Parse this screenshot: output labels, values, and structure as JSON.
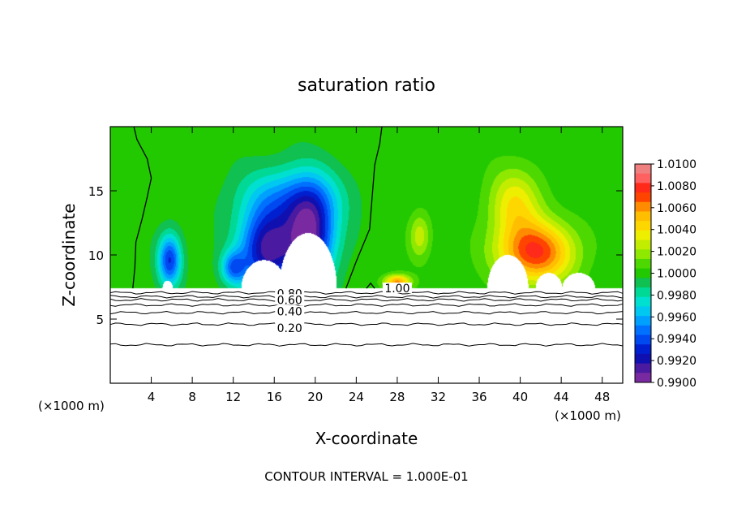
{
  "chart_data": {
    "type": "contour",
    "title": "saturation ratio",
    "xlabel": "X-coordinate",
    "ylabel": "Z-coordinate",
    "x_unit_left": "(×1000 m)",
    "x_unit_right": "(×1000 m)",
    "footer": "CONTOUR INTERVAL = 1.000E-01",
    "xlim": [
      0,
      50
    ],
    "ylim": [
      0,
      20
    ],
    "x_ticks": [
      4,
      8,
      12,
      16,
      20,
      24,
      28,
      32,
      36,
      40,
      44,
      48
    ],
    "y_ticks": [
      5,
      10,
      15
    ],
    "colorbar": {
      "ticks": [
        "1.0100",
        "1.0080",
        "1.0060",
        "1.0040",
        "1.0020",
        "1.0000",
        "0.9980",
        "0.9960",
        "0.9940",
        "0.9920",
        "0.9900"
      ],
      "colors": [
        "#f08080",
        "#ff6060",
        "#ff2a1a",
        "#ff4400",
        "#ff8c00",
        "#ffbf00",
        "#ffd700",
        "#eeee00",
        "#c2ec00",
        "#8fe800",
        "#4cd800",
        "#22c800",
        "#10c050",
        "#00d896",
        "#00e0d0",
        "#00c8f0",
        "#00a0ff",
        "#0070ff",
        "#0048f0",
        "#0020d0",
        "#1010b0",
        "#4a1aa0",
        "#7a2aa0"
      ]
    },
    "contour_labels": [
      {
        "text": "1.00",
        "x": 28.0,
        "y": 7.4
      },
      {
        "text": "0.80",
        "x": 17.5,
        "y": 7.0
      },
      {
        "text": "0.60",
        "x": 17.5,
        "y": 6.5
      },
      {
        "text": "0.40",
        "x": 17.5,
        "y": 5.6
      },
      {
        "text": "0.20",
        "x": 17.5,
        "y": 4.3
      }
    ],
    "contour_levels": [
      7.05,
      6.75,
      6.5,
      6.1,
      5.5,
      4.6,
      3.0
    ],
    "contour_1_00_lines": [
      [
        [
          2.2,
          7.4
        ],
        [
          2.4,
          9
        ],
        [
          2.5,
          11
        ],
        [
          3.1,
          12.8
        ],
        [
          3.6,
          14.5
        ],
        [
          4.0,
          16
        ],
        [
          3.6,
          17.5
        ],
        [
          2.6,
          19
        ],
        [
          2.3,
          20
        ]
      ],
      [
        [
          23.0,
          7.4
        ],
        [
          24.0,
          9.5
        ],
        [
          25.3,
          12
        ],
        [
          25.6,
          15
        ],
        [
          25.8,
          17
        ],
        [
          26.3,
          18.7
        ],
        [
          26.5,
          20
        ]
      ],
      [
        [
          25.0,
          7.4
        ],
        [
          25.4,
          7.8
        ],
        [
          25.8,
          7.4
        ]
      ]
    ],
    "surface_z": 7.4,
    "regions": [
      {
        "kind": "dry",
        "cx": 5.8,
        "cz": 9.6,
        "rx": 1.4,
        "rz": 2.5,
        "min": 0.9935
      },
      {
        "kind": "dry",
        "cx": 12.0,
        "cz": 9.0,
        "rx": 1.5,
        "rz": 1.6,
        "min": 0.9955
      },
      {
        "kind": "dry",
        "cx": 15.3,
        "cz": 10.4,
        "rx": 3.4,
        "rz": 4.0,
        "min": 0.9915
      },
      {
        "kind": "dry",
        "cx": 19.5,
        "cz": 11.5,
        "rx": 3.0,
        "rz": 4.6,
        "min": 0.9912
      },
      {
        "kind": "dry",
        "cx": 17.5,
        "cz": 14.5,
        "rx": 6.0,
        "rz": 3.0,
        "min": 0.9965
      },
      {
        "kind": "moist",
        "cx": 41.5,
        "cz": 10.2,
        "rx": 4.6,
        "rz": 3.0,
        "max": 1.0075
      },
      {
        "kind": "moist",
        "cx": 39.5,
        "cz": 14.0,
        "rx": 3.2,
        "rz": 3.4,
        "max": 1.0038
      },
      {
        "kind": "moist",
        "cx": 30.2,
        "cz": 11.5,
        "rx": 1.3,
        "rz": 2.2,
        "max": 1.0028
      },
      {
        "kind": "moist",
        "cx": 28.0,
        "cz": 7.9,
        "rx": 1.6,
        "rz": 0.7,
        "max": 1.006
      }
    ],
    "clouds": [
      {
        "cx": 5.6,
        "cz": 7.4,
        "rx": 0.5,
        "rz": 0.6
      },
      {
        "cx": 15.0,
        "cz": 7.4,
        "rx": 2.2,
        "rz": 2.2
      },
      {
        "cx": 19.3,
        "cz": 7.4,
        "rx": 2.8,
        "rz": 4.3
      },
      {
        "cx": 38.8,
        "cz": 7.4,
        "rx": 2.0,
        "rz": 2.6
      },
      {
        "cx": 42.8,
        "cz": 7.4,
        "rx": 1.3,
        "rz": 1.2
      },
      {
        "cx": 45.7,
        "cz": 7.4,
        "rx": 1.6,
        "rz": 1.2
      }
    ]
  }
}
